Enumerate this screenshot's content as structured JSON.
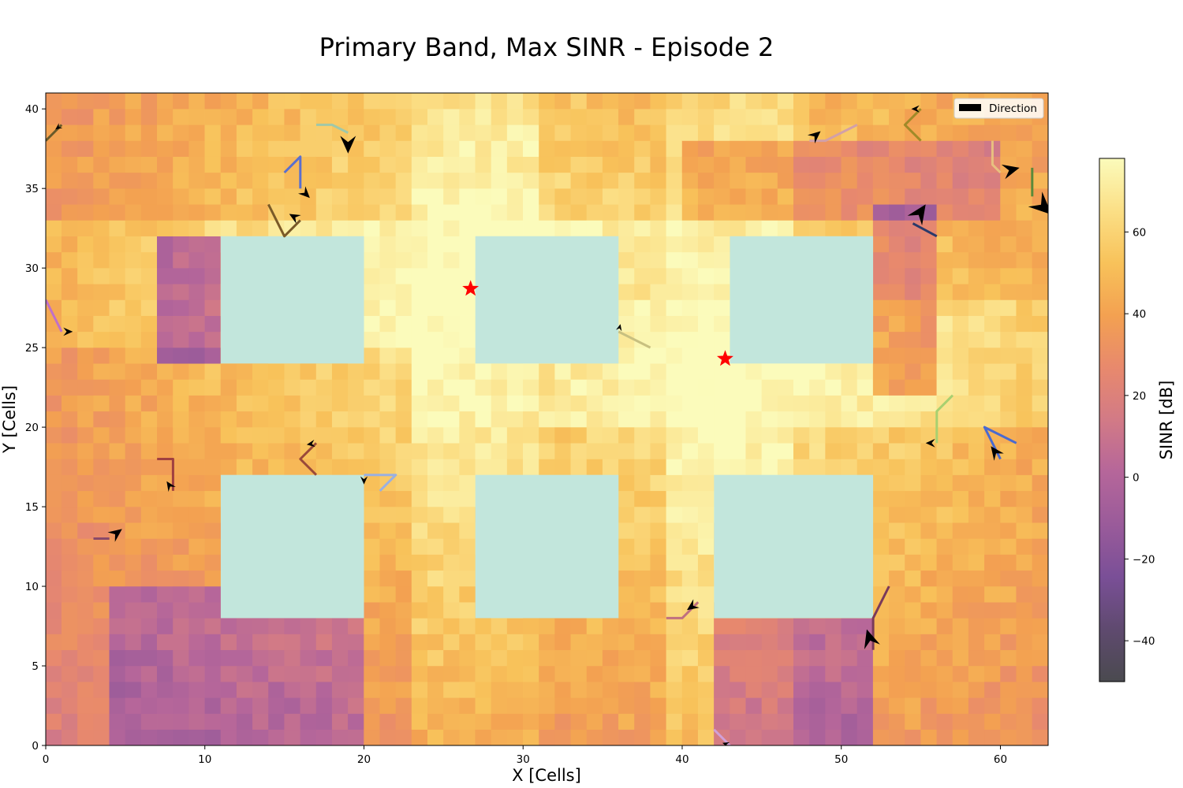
{
  "chart_data": {
    "type": "heatmap",
    "title": "Primary Band, Max SINR -  Episode 2",
    "xlabel": "X [Cells]",
    "ylabel": "Y [Cells]",
    "xlim": [
      0,
      63
    ],
    "ylim": [
      0,
      41
    ],
    "xticks": [
      0,
      10,
      20,
      30,
      40,
      50,
      60
    ],
    "yticks": [
      0,
      5,
      10,
      15,
      20,
      25,
      30,
      35,
      40
    ],
    "grid": false,
    "colorbar": {
      "label": "SINR [dB]",
      "range": [
        -50,
        78
      ],
      "ticks": [
        -40,
        -20,
        0,
        20,
        40,
        60
      ],
      "tick_labels": [
        "−40",
        "−20",
        "0",
        "20",
        "40",
        "60"
      ]
    },
    "colormap": [
      "#4a4a4f",
      "#5f4a6f",
      "#7a4f97",
      "#9a5b9a",
      "#b5669a",
      "#d27a86",
      "#e8896d",
      "#f3a151",
      "#f8c25a",
      "#fbdf86",
      "#fbfbbb"
    ],
    "buildings_color": "#c2e6dc",
    "buildings": [
      {
        "x0": 11,
        "x1": 20,
        "y0": 24,
        "y1": 32
      },
      {
        "x0": 27,
        "x1": 36,
        "y0": 24,
        "y1": 32
      },
      {
        "x0": 43,
        "x1": 52,
        "y0": 24,
        "y1": 32
      },
      {
        "x0": 11,
        "x1": 20,
        "y0": 8,
        "y1": 17
      },
      {
        "x0": 27,
        "x1": 36,
        "y0": 8,
        "y1": 17
      },
      {
        "x0": 42,
        "x1": 52,
        "y0": 8,
        "y1": 17
      }
    ],
    "base_stations": [
      {
        "x": 26.7,
        "y": 28.7
      },
      {
        "x": 42.7,
        "y": 24.3
      }
    ],
    "legend": {
      "label": "Direction",
      "placement": "upper right"
    },
    "trajectories": [
      {
        "color": "#a0c8a8",
        "points": [
          [
            17,
            39
          ],
          [
            18,
            39
          ],
          [
            19,
            38.5
          ]
        ],
        "arrow_dir": [
          0,
          -1.3
        ]
      },
      {
        "color": "#5a6fcf",
        "points": [
          [
            15,
            36
          ],
          [
            16,
            37
          ],
          [
            16,
            35
          ]
        ],
        "arrow_dir": [
          0.6,
          -0.6
        ]
      },
      {
        "color": "#7a5a28",
        "points": [
          [
            14,
            34
          ],
          [
            15,
            32
          ],
          [
            16,
            33
          ]
        ],
        "arrow_dir": [
          -0.7,
          0.4
        ]
      },
      {
        "color": "#6a5a2a",
        "points": [
          [
            0,
            38
          ],
          [
            1,
            39
          ]
        ],
        "arrow_dir": [
          -0.4,
          -0.3
        ]
      },
      {
        "color": "#c070c8",
        "points": [
          [
            0,
            28
          ],
          [
            1,
            26
          ]
        ],
        "arrow_dir": [
          0.7,
          0
        ]
      },
      {
        "color": "#a04040",
        "points": [
          [
            7,
            18
          ],
          [
            8,
            18
          ],
          [
            8,
            16
          ]
        ],
        "arrow_dir": [
          -0.4,
          0.6
        ]
      },
      {
        "color": "#8a4a6a",
        "points": [
          [
            3,
            13
          ],
          [
            4,
            13
          ]
        ],
        "arrow_dir": [
          0.8,
          0.6
        ]
      },
      {
        "color": "#9a4a3a",
        "points": [
          [
            17,
            17
          ],
          [
            16,
            18
          ],
          [
            17,
            19
          ]
        ],
        "arrow_dir": [
          -0.6,
          -0.1
        ]
      },
      {
        "color": "#9ab0e0",
        "points": [
          [
            21,
            16
          ],
          [
            22,
            17
          ],
          [
            20,
            17
          ]
        ],
        "arrow_dir": [
          0,
          -0.6
        ]
      },
      {
        "color": "#c8c080",
        "points": [
          [
            38,
            25
          ],
          [
            36,
            26
          ]
        ],
        "arrow_dir": [
          0.1,
          0.4
        ]
      },
      {
        "color": "#d2a0a8",
        "points": [
          [
            51,
            39
          ],
          [
            49,
            38
          ],
          [
            48,
            38
          ]
        ],
        "arrow_dir": [
          0.7,
          0.6
        ]
      },
      {
        "color": "#a08a28",
        "points": [
          [
            55,
            38
          ],
          [
            54,
            39
          ],
          [
            55,
            40
          ]
        ],
        "arrow_dir": [
          -0.6,
          0
        ]
      },
      {
        "color": "#e8c080",
        "points": [
          [
            59.5,
            38
          ],
          [
            59.5,
            36.5
          ],
          [
            60,
            36
          ]
        ],
        "arrow_dir": [
          1.2,
          0.3
        ]
      },
      {
        "color": "#5a8a3a",
        "points": [
          [
            62,
            36.3
          ],
          [
            62,
            34.5
          ]
        ],
        "arrow_dir": [
          1.6,
          -1.5
        ]
      },
      {
        "color": "#2a3a6a",
        "points": [
          [
            56,
            32
          ],
          [
            54.5,
            32.8
          ]
        ],
        "arrow_dir": [
          0.8,
          1.2
        ]
      },
      {
        "color": "#a8d070",
        "points": [
          [
            57,
            22
          ],
          [
            56,
            21
          ],
          [
            56,
            19
          ]
        ],
        "arrow_dir": [
          -0.7,
          0
        ]
      },
      {
        "color": "#4a6ad0",
        "points": [
          [
            61,
            19
          ],
          [
            59,
            20
          ],
          [
            60,
            18
          ]
        ],
        "arrow_dir": [
          -0.6,
          0.8
        ]
      },
      {
        "color": "#c07080",
        "points": [
          [
            39,
            8
          ],
          [
            40,
            8
          ],
          [
            41,
            9
          ]
        ],
        "arrow_dir": [
          -0.7,
          -0.5
        ]
      },
      {
        "color": "#7a3a5a",
        "points": [
          [
            53,
            10
          ],
          [
            52,
            8
          ],
          [
            52,
            6
          ]
        ],
        "arrow_dir": [
          -0.4,
          1.3
        ]
      },
      {
        "color": "#d0a0d8",
        "points": [
          [
            42,
            1
          ],
          [
            43,
            0
          ]
        ],
        "arrow_dir": [
          -0.3,
          0.1
        ]
      }
    ]
  }
}
